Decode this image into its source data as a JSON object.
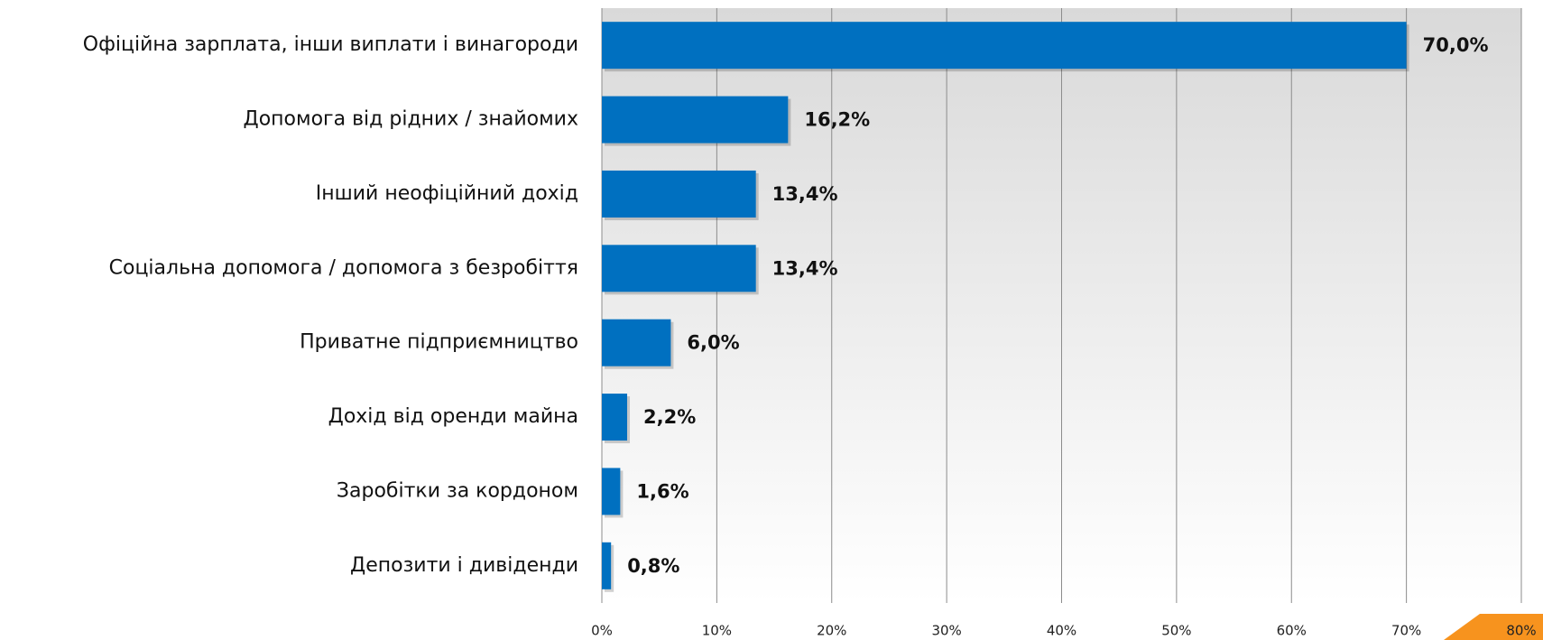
{
  "chart_data": {
    "type": "bar",
    "orientation": "horizontal",
    "categories": [
      "Офіційна зарплата, інши виплати і винагороди",
      "Допомога від рідних / знайомих",
      "Інший неофіційний дохід",
      "Соціальна допомога / допомога з безробіття",
      "Приватне підприємництво",
      "Дохід від оренди майна",
      "Заробітки за кордоном",
      "Депозити і дивіденди"
    ],
    "values": [
      70,
      16.2,
      13.4,
      13.4,
      6,
      2.2,
      1.6,
      0.8
    ],
    "value_labels": [
      "70,0%",
      "16,2%",
      "13,4%",
      "13,4%",
      "6,0%",
      "2,2%",
      "1,6%",
      "0,8%"
    ],
    "color": "#0070c0",
    "xlim": [
      0,
      80
    ],
    "xticks": [
      {
        "value": 0,
        "label": "0%"
      },
      {
        "value": 10,
        "label": "10%"
      },
      {
        "value": 20,
        "label": "20%"
      },
      {
        "value": 30,
        "label": "30%"
      },
      {
        "value": 40,
        "label": "40%"
      },
      {
        "value": 50,
        "label": "50%"
      },
      {
        "value": 60,
        "label": "60%"
      },
      {
        "value": 70,
        "label": "70%"
      },
      {
        "value": 80,
        "label": "80%"
      }
    ],
    "grid": true
  }
}
